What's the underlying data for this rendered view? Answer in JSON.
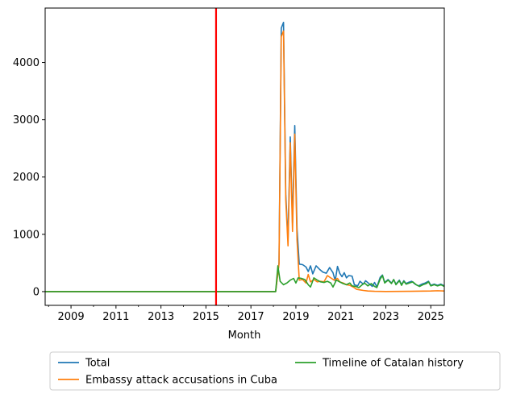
{
  "chart_data": {
    "type": "line",
    "title": "",
    "xlabel": "Month",
    "ylabel": "",
    "xlim": [
      2007.85,
      2025.6
    ],
    "ylim": [
      -240,
      4950
    ],
    "grid": false,
    "legend_position": "bottom-center-outside",
    "xticks": [
      {
        "value": 2009,
        "label": "2009"
      },
      {
        "value": 2011,
        "label": "2011"
      },
      {
        "value": 2013,
        "label": "2013"
      },
      {
        "value": 2015,
        "label": "2015"
      },
      {
        "value": 2017,
        "label": "2017"
      },
      {
        "value": 2019,
        "label": "2019"
      },
      {
        "value": 2021,
        "label": "2021"
      },
      {
        "value": 2023,
        "label": "2023"
      },
      {
        "value": 2025,
        "label": "2025"
      }
    ],
    "yticks": [
      {
        "value": 0,
        "label": "0"
      },
      {
        "value": 1000,
        "label": "1000"
      },
      {
        "value": 2000,
        "label": "2000"
      },
      {
        "value": 3000,
        "label": "3000"
      },
      {
        "value": 4000,
        "label": "4000"
      }
    ],
    "vertical_line": {
      "x": 2015.45,
      "color": "#ff0000"
    },
    "legend_entries": [
      "Total",
      "Embassy attack accusations in Cuba",
      "Timeline of Catalan history"
    ],
    "series": [
      {
        "name": "Total",
        "color": "#1f77b4",
        "points": [
          [
            2007.85,
            0
          ],
          [
            2018.1,
            0
          ],
          [
            2018.25,
            500
          ],
          [
            2018.35,
            4600
          ],
          [
            2018.45,
            4700
          ],
          [
            2018.55,
            1700
          ],
          [
            2018.65,
            900
          ],
          [
            2018.75,
            2700
          ],
          [
            2018.85,
            1200
          ],
          [
            2018.95,
            2900
          ],
          [
            2019.05,
            1100
          ],
          [
            2019.15,
            480
          ],
          [
            2019.3,
            470
          ],
          [
            2019.45,
            430
          ],
          [
            2019.55,
            350
          ],
          [
            2019.65,
            450
          ],
          [
            2019.75,
            310
          ],
          [
            2019.9,
            450
          ],
          [
            2020.05,
            390
          ],
          [
            2020.2,
            340
          ],
          [
            2020.35,
            320
          ],
          [
            2020.5,
            420
          ],
          [
            2020.65,
            330
          ],
          [
            2020.75,
            190
          ],
          [
            2020.85,
            440
          ],
          [
            2020.95,
            320
          ],
          [
            2021.05,
            260
          ],
          [
            2021.15,
            330
          ],
          [
            2021.25,
            240
          ],
          [
            2021.35,
            280
          ],
          [
            2021.5,
            270
          ],
          [
            2021.6,
            120
          ],
          [
            2021.75,
            100
          ],
          [
            2021.85,
            180
          ],
          [
            2022.0,
            130
          ],
          [
            2022.1,
            190
          ],
          [
            2022.25,
            140
          ],
          [
            2022.4,
            90
          ],
          [
            2022.5,
            160
          ],
          [
            2022.6,
            80
          ],
          [
            2022.75,
            250
          ],
          [
            2022.85,
            290
          ],
          [
            2022.95,
            160
          ],
          [
            2023.1,
            210
          ],
          [
            2023.25,
            150
          ],
          [
            2023.35,
            210
          ],
          [
            2023.45,
            130
          ],
          [
            2023.6,
            200
          ],
          [
            2023.7,
            120
          ],
          [
            2023.8,
            190
          ],
          [
            2023.9,
            140
          ],
          [
            2024.0,
            160
          ],
          [
            2024.15,
            180
          ],
          [
            2024.3,
            130
          ],
          [
            2024.45,
            100
          ],
          [
            2024.6,
            130
          ],
          [
            2024.75,
            150
          ],
          [
            2024.9,
            180
          ],
          [
            2025.0,
            110
          ],
          [
            2025.15,
            130
          ],
          [
            2025.3,
            110
          ],
          [
            2025.45,
            130
          ],
          [
            2025.6,
            100
          ]
        ]
      },
      {
        "name": "Embassy attack accusations in Cuba",
        "color": "#ff7f0e",
        "points": [
          [
            2007.85,
            0
          ],
          [
            2018.1,
            0
          ],
          [
            2018.25,
            480
          ],
          [
            2018.35,
            4450
          ],
          [
            2018.45,
            4550
          ],
          [
            2018.55,
            1600
          ],
          [
            2018.65,
            800
          ],
          [
            2018.75,
            2600
          ],
          [
            2018.85,
            1050
          ],
          [
            2018.95,
            2750
          ],
          [
            2019.05,
            900
          ],
          [
            2019.15,
            200
          ],
          [
            2019.3,
            210
          ],
          [
            2019.45,
            150
          ],
          [
            2019.55,
            300
          ],
          [
            2019.65,
            170
          ],
          [
            2019.8,
            210
          ],
          [
            2019.95,
            170
          ],
          [
            2020.1,
            180
          ],
          [
            2020.25,
            170
          ],
          [
            2020.4,
            280
          ],
          [
            2020.55,
            240
          ],
          [
            2020.7,
            200
          ],
          [
            2020.85,
            230
          ],
          [
            2020.95,
            170
          ],
          [
            2021.1,
            150
          ],
          [
            2021.25,
            120
          ],
          [
            2021.4,
            110
          ],
          [
            2021.55,
            80
          ],
          [
            2021.7,
            40
          ],
          [
            2021.85,
            30
          ],
          [
            2022.0,
            20
          ],
          [
            2022.2,
            10
          ],
          [
            2022.5,
            5
          ],
          [
            2023.0,
            2
          ],
          [
            2024.0,
            5
          ],
          [
            2025.0,
            10
          ],
          [
            2025.3,
            15
          ],
          [
            2025.6,
            10
          ]
        ]
      },
      {
        "name": "Timeline of Catalan history",
        "color": "#2ca02c",
        "points": [
          [
            2007.85,
            0
          ],
          [
            2018.1,
            0
          ],
          [
            2018.2,
            450
          ],
          [
            2018.3,
            180
          ],
          [
            2018.45,
            120
          ],
          [
            2018.6,
            150
          ],
          [
            2018.75,
            200
          ],
          [
            2018.9,
            230
          ],
          [
            2019.0,
            150
          ],
          [
            2019.1,
            240
          ],
          [
            2019.25,
            230
          ],
          [
            2019.4,
            210
          ],
          [
            2019.55,
            120
          ],
          [
            2019.65,
            80
          ],
          [
            2019.8,
            240
          ],
          [
            2019.95,
            200
          ],
          [
            2020.1,
            170
          ],
          [
            2020.25,
            160
          ],
          [
            2020.4,
            180
          ],
          [
            2020.55,
            150
          ],
          [
            2020.65,
            80
          ],
          [
            2020.8,
            200
          ],
          [
            2020.95,
            170
          ],
          [
            2021.1,
            140
          ],
          [
            2021.25,
            120
          ],
          [
            2021.4,
            150
          ],
          [
            2021.5,
            100
          ],
          [
            2021.65,
            90
          ],
          [
            2021.8,
            70
          ],
          [
            2021.95,
            120
          ],
          [
            2022.05,
            150
          ],
          [
            2022.2,
            100
          ],
          [
            2022.35,
            140
          ],
          [
            2022.5,
            90
          ],
          [
            2022.6,
            70
          ],
          [
            2022.75,
            220
          ],
          [
            2022.85,
            280
          ],
          [
            2022.95,
            150
          ],
          [
            2023.1,
            200
          ],
          [
            2023.25,
            140
          ],
          [
            2023.35,
            210
          ],
          [
            2023.45,
            120
          ],
          [
            2023.6,
            190
          ],
          [
            2023.7,
            110
          ],
          [
            2023.8,
            180
          ],
          [
            2023.9,
            130
          ],
          [
            2024.05,
            150
          ],
          [
            2024.2,
            170
          ],
          [
            2024.35,
            120
          ],
          [
            2024.5,
            90
          ],
          [
            2024.65,
            120
          ],
          [
            2024.8,
            140
          ],
          [
            2024.9,
            170
          ],
          [
            2025.0,
            100
          ],
          [
            2025.15,
            120
          ],
          [
            2025.3,
            100
          ],
          [
            2025.45,
            120
          ],
          [
            2025.6,
            90
          ]
        ]
      }
    ]
  }
}
